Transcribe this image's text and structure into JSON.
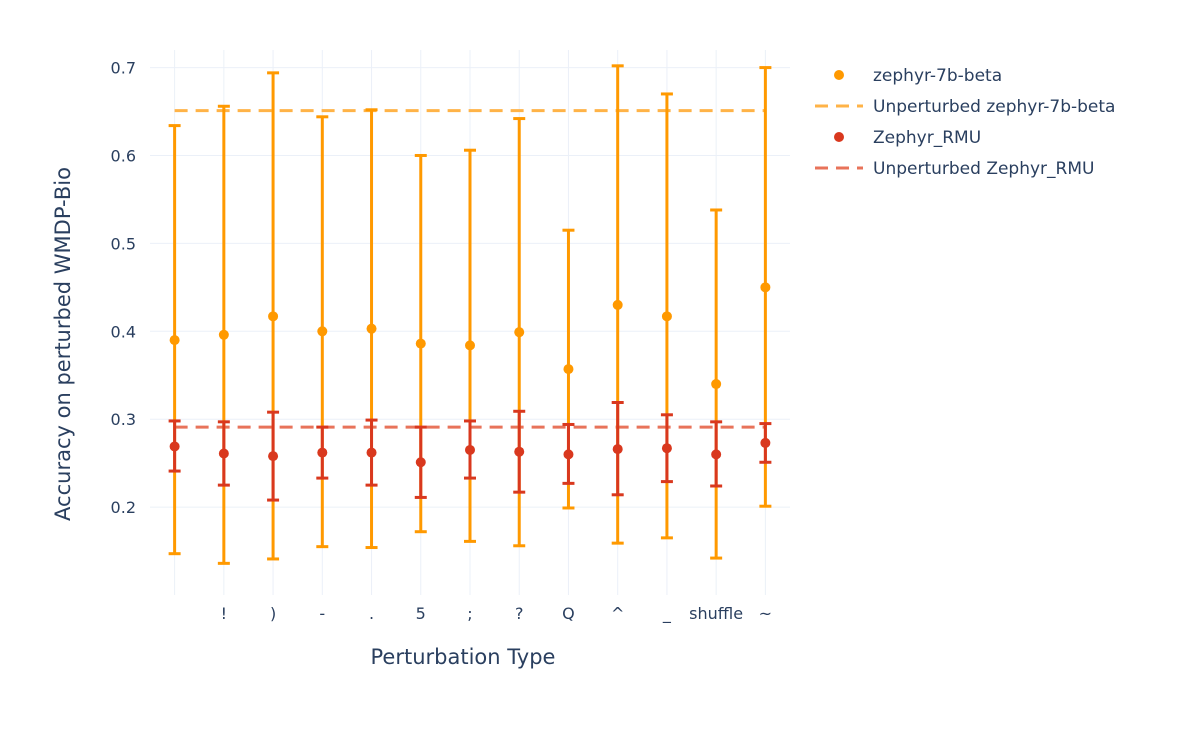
{
  "chart_data": {
    "type": "scatter",
    "xlabel": "Perturbation Type",
    "ylabel": "Accuracy on perturbed WMDP-Bio",
    "categories": [
      " ",
      "!",
      ")",
      "-",
      ".",
      "5",
      ";",
      "?",
      "Q",
      "^",
      "_",
      "shuffle",
      "~"
    ],
    "ylim": [
      0.1,
      0.72
    ],
    "yticks": [
      0.2,
      0.3,
      0.4,
      0.5,
      0.6,
      0.7
    ],
    "ytick_labels": [
      "0.2",
      "0.3",
      "0.4",
      "0.5",
      "0.6",
      "0.7"
    ],
    "grid": true,
    "legend_position": "right",
    "series": [
      {
        "name": "zephyr-7b-beta",
        "color": "#ff9900",
        "values": [
          0.39,
          0.396,
          0.417,
          0.4,
          0.403,
          0.386,
          0.384,
          0.399,
          0.357,
          0.43,
          0.417,
          0.34,
          0.45
        ],
        "err_low": [
          0.147,
          0.136,
          0.141,
          0.155,
          0.154,
          0.172,
          0.161,
          0.156,
          0.199,
          0.159,
          0.165,
          0.142,
          0.201
        ],
        "err_high": [
          0.634,
          0.656,
          0.694,
          0.644,
          0.652,
          0.6,
          0.606,
          0.642,
          0.515,
          0.702,
          0.67,
          0.538,
          0.7
        ]
      },
      {
        "name": "Zephyr_RMU",
        "color": "#d9381e",
        "values": [
          0.269,
          0.261,
          0.258,
          0.262,
          0.262,
          0.251,
          0.265,
          0.263,
          0.26,
          0.266,
          0.267,
          0.26,
          0.273
        ],
        "err_low": [
          0.241,
          0.225,
          0.208,
          0.233,
          0.225,
          0.211,
          0.233,
          0.217,
          0.227,
          0.214,
          0.229,
          0.224,
          0.251
        ],
        "err_high": [
          0.298,
          0.297,
          0.308,
          0.291,
          0.299,
          0.291,
          0.298,
          0.309,
          0.294,
          0.319,
          0.305,
          0.297,
          0.295
        ]
      }
    ],
    "reference_lines": [
      {
        "name": "Unperturbed zephyr-7b-beta",
        "value": 0.651,
        "color": "#ffb347",
        "dash": "dashed"
      },
      {
        "name": "Unperturbed Zephyr_RMU",
        "value": 0.291,
        "color": "#e8735a",
        "dash": "dashed"
      }
    ],
    "legend": [
      {
        "label": "zephyr-7b-beta",
        "kind": "marker",
        "color": "#ff9900"
      },
      {
        "label": "Unperturbed zephyr-7b-beta",
        "kind": "dash",
        "color": "#ffb347"
      },
      {
        "label": "Zephyr_RMU",
        "kind": "marker",
        "color": "#d9381e"
      },
      {
        "label": "Unperturbed Zephyr_RMU",
        "kind": "dash",
        "color": "#e8735a"
      }
    ]
  }
}
